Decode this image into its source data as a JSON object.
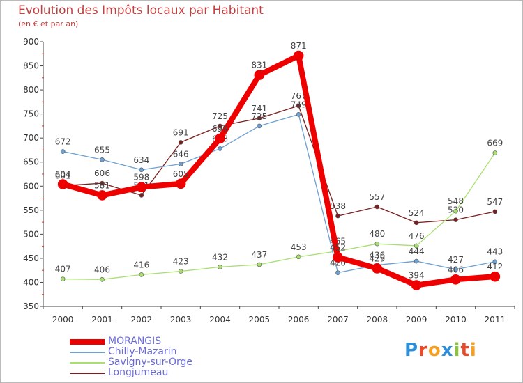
{
  "header": {
    "title": "Evolution des Impôts locaux par Habitant",
    "subtitle": "(en € et par an)"
  },
  "logo": {
    "text": "Proxiti",
    "colors": [
      "#2e8fd8",
      "#e84a2a",
      "#f5a020",
      "#2e8fd8",
      "#8ac43a",
      "#e84a2a",
      "#f5a020"
    ]
  },
  "chart_data": {
    "type": "line",
    "title": "Evolution des Impôts locaux par Habitant",
    "subtitle": "(en € et par an)",
    "xlabel": "",
    "ylabel": "",
    "ylim": [
      350,
      900
    ],
    "yticks": [
      350,
      400,
      450,
      500,
      550,
      600,
      650,
      700,
      750,
      800,
      850,
      900
    ],
    "categories": [
      "2000",
      "2001",
      "2002",
      "2003",
      "2004",
      "2005",
      "2006",
      "2007",
      "2008",
      "2009",
      "2010",
      "2011"
    ],
    "series": [
      {
        "name": "Longjumeau",
        "color": "#7a1f1f",
        "width": 1.3,
        "marker": 3,
        "values": [
          601,
          606,
          581,
          691,
          725,
          741,
          767,
          538,
          557,
          524,
          530,
          547
        ]
      },
      {
        "name": "Savigny-sur-Orge",
        "color": "#a8e070",
        "width": 1.3,
        "marker": 3,
        "values": [
          407,
          406,
          416,
          423,
          432,
          437,
          453,
          465,
          480,
          476,
          548,
          669
        ]
      },
      {
        "name": "Chilly-Mazarin",
        "color": "#6ea0d0",
        "width": 1.3,
        "marker": 3,
        "values": [
          672,
          655,
          634,
          646,
          678,
          725,
          749,
          420,
          436,
          444,
          427,
          443
        ]
      },
      {
        "name": "MORANGIS",
        "color": "#ee0000",
        "width": 8,
        "marker": 7,
        "values": [
          604,
          581,
          598,
          605,
          699,
          831,
          871,
          452,
          429,
          394,
          406,
          412
        ]
      }
    ],
    "legend": [
      "MORANGIS",
      "Chilly-Mazarin",
      "Savigny-sur-Orge",
      "Longjumeau"
    ],
    "legend_position": "bottom-left",
    "grid": false
  }
}
